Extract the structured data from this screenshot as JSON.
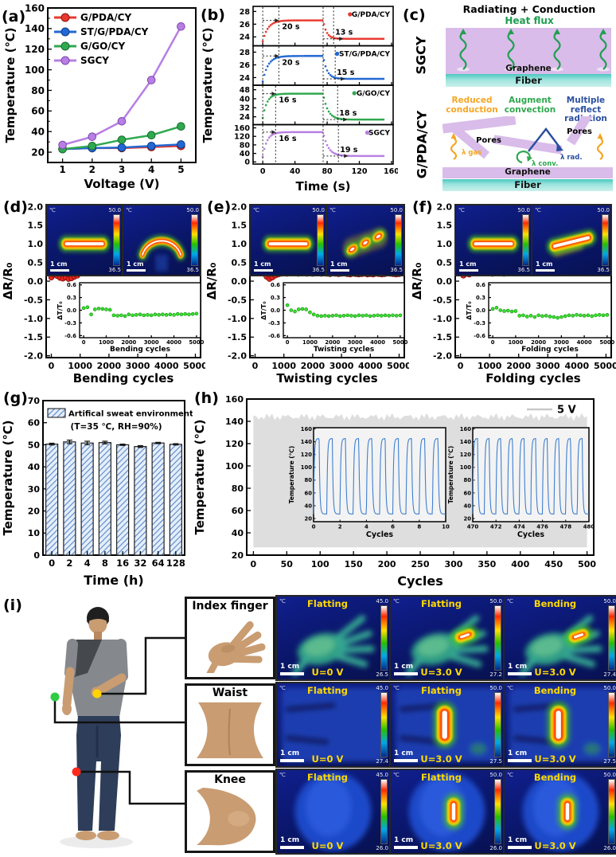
{
  "labels": {
    "a": "(a)",
    "b": "(b)",
    "c": "(c)",
    "d": "(d)",
    "e": "(e)",
    "f": "(f)",
    "g": "(g)",
    "h": "(h)",
    "i": "(i)"
  },
  "colors": {
    "red": "#e8392f",
    "blue": "#2268d2",
    "green": "#2fa84f",
    "purple": "#b77fe3",
    "band_gray": "#dedede",
    "cycle_blue": "#3f7fd0",
    "hatch_blue": "#5b87c5",
    "bar_fill": "#e4eefb",
    "slab_purple": "#d9bce9",
    "fiber_teal": "#4cc8c0",
    "hot_yellow": "#ffd900"
  },
  "panel_c": {
    "sgcy": {
      "side": "SGCY",
      "title": "Radiating + Conduction",
      "heat_flux": "Heat flux",
      "graphene": "Graphene",
      "fiber": "Fiber"
    },
    "gpda": {
      "side": "G/PDA/CY",
      "title_reduced": "Reduced conduction",
      "title_augment": "Augment convection",
      "title_multiple": "Multiple reflect radiation",
      "color_reduced": "#f5a623",
      "color_augment": "#2fa84f",
      "color_multiple": "#2b4fa0",
      "pores1": "Pores",
      "pores2": "Pores",
      "lambda_gas": "λ gas",
      "lambda_conv": "λ conv.",
      "lambda_rad": "λ rad.",
      "graphene": "Graphene",
      "fiber": "Fiber"
    }
  },
  "panel_i": {
    "photos": [
      {
        "label": "Index finger"
      },
      {
        "label": "Waist"
      },
      {
        "label": "Knee"
      }
    ],
    "markers": [
      {
        "part": "index-finger",
        "color": "#ffd400"
      },
      {
        "part": "waist",
        "color": "#2ecc40"
      },
      {
        "part": "knee",
        "color": "#ff2a1a"
      }
    ],
    "rows": [
      {
        "part": "Index finger",
        "art": "hand",
        "cells": [
          {
            "state": "Flatting",
            "voltage": "U=0 V",
            "unit": "℃",
            "cb_max": "45.0",
            "cb_min": "26.5",
            "scale": "1 cm",
            "hot": false
          },
          {
            "state": "Flatting",
            "voltage": "U=3.0 V",
            "unit": "℃",
            "cb_max": "50.0",
            "cb_min": "27.2",
            "scale": "1 cm",
            "hot": true
          },
          {
            "state": "Bending",
            "voltage": "U=3.0 V",
            "unit": "℃",
            "cb_max": "50.0",
            "cb_min": "27.4",
            "scale": "1 cm",
            "hot": true
          }
        ]
      },
      {
        "part": "Waist",
        "art": "waist",
        "cells": [
          {
            "state": "Flatting",
            "voltage": "U=0 V",
            "unit": "℃",
            "cb_max": "45.0",
            "cb_min": "27.4",
            "scale": "1 cm",
            "hot": false
          },
          {
            "state": "Flatting",
            "voltage": "U=3.0 V",
            "unit": "℃",
            "cb_max": "50.0",
            "cb_min": "27.5",
            "scale": "1 cm",
            "hot": true
          },
          {
            "state": "Bending",
            "voltage": "U=3.0 V",
            "unit": "℃",
            "cb_max": "50.0",
            "cb_min": "27.5",
            "scale": "1 cm",
            "hot": true
          }
        ]
      },
      {
        "part": "Knee",
        "art": "knee",
        "cells": [
          {
            "state": "Flatting",
            "voltage": "U=0 V",
            "unit": "℃",
            "cb_max": "45.0",
            "cb_min": "26.0",
            "scale": "1 cm",
            "hot": false
          },
          {
            "state": "Flatting",
            "voltage": "U=3.0 V",
            "unit": "℃",
            "cb_max": "50.0",
            "cb_min": "26.0",
            "scale": "1 cm",
            "hot": true
          },
          {
            "state": "Bending",
            "voltage": "U=3.0 V",
            "unit": "℃",
            "cb_max": "50.0",
            "cb_min": "26.0",
            "scale": "1 cm",
            "hot": true
          }
        ]
      }
    ]
  },
  "chart_data": [
    {
      "panel": "a",
      "type": "line",
      "xlabel": "Voltage (V)",
      "ylabel": "Temperature (℃)",
      "x": [
        1,
        2,
        3,
        4,
        5
      ],
      "xlim": [
        0.5,
        5.5
      ],
      "ylim": [
        10,
        160
      ],
      "yticks": [
        20,
        40,
        60,
        80,
        100,
        120,
        140,
        160
      ],
      "legend_position": "top-left",
      "series": [
        {
          "name": "G/PDA/CY",
          "color": "#e8392f",
          "edge": "#8f130d",
          "values": [
            23,
            24,
            24,
            25,
            26
          ]
        },
        {
          "name": "ST/G/PDA/CY",
          "color": "#2268d2",
          "edge": "#0d3d8f",
          "values": [
            23,
            24,
            24.5,
            26,
            27.5
          ]
        },
        {
          "name": "G/GO/CY",
          "color": "#2fa84f",
          "edge": "#176b2e",
          "values": [
            23,
            26,
            32,
            36.5,
            45
          ]
        },
        {
          "name": "SGCY",
          "color": "#b77fe3",
          "edge": "#7e46b0",
          "values": [
            27,
            35,
            50,
            90,
            142
          ]
        }
      ]
    },
    {
      "panel": "b",
      "type": "line-stack",
      "xlabel": "Time (s)",
      "ylabel": "Temperature (℃)",
      "xlim": [
        -12,
        162
      ],
      "xticks": [
        0,
        40,
        80,
        120,
        160
      ],
      "off_t": 75,
      "subplots": [
        {
          "name": "G/PDA/CY",
          "color": "#e8392f",
          "base": 23.3,
          "peak": 26.6,
          "end": 23.7,
          "rise_t": 20,
          "fall_t": 13,
          "rise_label": "20 s",
          "fall_label": "13 s",
          "yticks": [
            24,
            26,
            28
          ],
          "ylim": [
            22.6,
            28.8
          ]
        },
        {
          "name": "ST/G/PDA/CY",
          "color": "#2268d2",
          "base": 23.4,
          "peak": 27.4,
          "end": 23.8,
          "rise_t": 20,
          "fall_t": 15,
          "rise_label": "20 s",
          "fall_label": "15 s",
          "yticks": [
            24,
            26,
            28
          ],
          "ylim": [
            22.8,
            29
          ]
        },
        {
          "name": "G/GO/CY",
          "color": "#2fa84f",
          "base": 23,
          "peak": 44.5,
          "end": 21.5,
          "rise_t": 16,
          "fall_t": 18,
          "rise_label": "16 s",
          "fall_label": "18 s",
          "yticks": [
            24,
            32,
            40,
            48
          ],
          "ylim": [
            17,
            52
          ]
        },
        {
          "name": "SGCY",
          "color": "#b77fe3",
          "base": 25,
          "peak": 140,
          "end": 28,
          "rise_t": 16,
          "fall_t": 19,
          "rise_label": "16 s",
          "fall_label": "19 s",
          "yticks": [
            0,
            40,
            80,
            120,
            160
          ],
          "ylim": [
            -10,
            175
          ]
        }
      ]
    },
    {
      "panel": "d",
      "type": "scatter",
      "xlabel": "Bending cycles",
      "ylabel": "ΔR/R₀",
      "xlim": [
        -180,
        5180
      ],
      "xticks": [
        0,
        1000,
        2000,
        3000,
        4000,
        5000
      ],
      "ylim": [
        -2.05,
        2.05
      ],
      "yticks": [
        -2,
        -1.5,
        -1,
        -0.5,
        0,
        0.5,
        1,
        1.5,
        2
      ],
      "red": {
        "color": "#e8251f",
        "edge": "#7d0a06",
        "x_step": 100,
        "values": [
          0.1,
          0.17,
          0.14,
          0.09,
          0.07,
          0.1,
          0.06,
          0.08,
          0.12,
          0.15,
          0.22,
          0.27,
          0.3,
          0.29,
          0.31,
          0.3,
          0.29,
          0.31,
          0.3,
          0.3,
          0.29,
          0.3,
          0.31,
          0.29,
          0.3,
          0.29,
          0.28,
          0.29,
          0.3,
          0.28,
          0.27,
          0.28,
          0.29,
          0.27,
          0.26,
          0.28,
          0.27,
          0.26,
          0.27,
          0.26,
          0.25,
          0.27,
          0.26,
          0.25,
          0.26,
          0.25,
          0.24,
          0.26,
          0.25,
          0.24,
          0.25
        ]
      },
      "inset": {
        "xlabel": "Bending cycles",
        "ylabel": "ΔT/T₀",
        "ylim": [
          -0.65,
          0.65
        ],
        "yticks": [
          -0.6,
          -0.3,
          0,
          0.3,
          0.6
        ],
        "xticks": [
          0,
          1000,
          2000,
          3000,
          4000,
          5000
        ],
        "green": {
          "color": "#39e02e",
          "edge": "#0e8a0a",
          "x_step": 166.7,
          "values": [
            0.05,
            0.07,
            -0.1,
            0.02,
            0.04,
            0.03,
            0.02,
            0.01,
            -0.12,
            -0.13,
            -0.12,
            -0.14,
            -0.1,
            -0.12,
            -0.11,
            -0.1,
            -0.12,
            -0.11,
            -0.12,
            -0.1,
            -0.11,
            -0.1,
            -0.11,
            -0.1,
            -0.11,
            -0.09,
            -0.1,
            -0.09,
            -0.1,
            -0.09,
            -0.08
          ]
        }
      },
      "thermal": [
        {
          "unit": "℃",
          "cb_max": "50.0",
          "cb_min": "36.5",
          "scale": "1 cm",
          "art": "strip"
        },
        {
          "unit": "℃",
          "cb_max": "50.0",
          "cb_min": "36.5",
          "scale": "1 cm",
          "art": "arc"
        }
      ]
    },
    {
      "panel": "e",
      "type": "scatter",
      "xlabel": "Twisting cycles",
      "ylabel": "ΔR/R₀",
      "xlim": [
        -180,
        5180
      ],
      "xticks": [
        0,
        1000,
        2000,
        3000,
        4000,
        5000
      ],
      "ylim": [
        -2.05,
        2.05
      ],
      "yticks": [
        -2,
        -1.5,
        -1,
        -0.5,
        0,
        0.5,
        1,
        1.5,
        2
      ],
      "red": {
        "color": "#e8251f",
        "edge": "#7d0a06",
        "x_step": 100,
        "values": [
          0.5,
          0.43,
          0.38,
          0.2,
          0.12,
          0.06,
          0.1,
          0.15,
          0.18,
          0.2,
          0.22,
          0.2,
          0.23,
          0.21,
          0.22,
          0.2,
          0.21,
          0.22,
          0.2,
          0.21,
          0.2,
          0.22,
          0.21,
          0.2,
          0.21,
          0.2,
          0.19,
          0.21,
          0.2,
          0.19,
          0.2,
          0.21,
          0.19,
          0.18,
          0.2,
          0.19,
          0.18,
          0.19,
          0.2,
          0.18,
          0.19,
          0.18,
          0.2,
          0.19,
          0.18,
          0.19,
          0.23,
          0.2,
          0.19,
          0.18,
          0.19
        ]
      },
      "inset": {
        "xlabel": "Twisting cycles",
        "ylabel": "ΔT/T₀",
        "ylim": [
          -0.65,
          0.65
        ],
        "yticks": [
          -0.6,
          -0.3,
          0,
          0.3,
          0.6
        ],
        "xticks": [
          0,
          1000,
          2000,
          3000,
          4000,
          5000
        ],
        "green": {
          "color": "#39e02e",
          "edge": "#0e8a0a",
          "x_step": 166.7,
          "values": [
            0.12,
            0.0,
            -0.03,
            0.02,
            0.03,
            0.02,
            -0.05,
            -0.1,
            -0.13,
            -0.14,
            -0.13,
            -0.14,
            -0.13,
            -0.12,
            -0.14,
            -0.13,
            -0.12,
            -0.13,
            -0.14,
            -0.12,
            -0.13,
            -0.12,
            -0.14,
            -0.13,
            -0.12,
            -0.13,
            -0.12,
            -0.13,
            -0.12,
            -0.13,
            -0.12
          ]
        }
      },
      "thermal": [
        {
          "unit": "℃",
          "cb_max": "50.0",
          "cb_min": "36.5",
          "scale": "1 cm",
          "art": "strip"
        },
        {
          "unit": "℃",
          "cb_max": "50.0",
          "cb_min": "36.5",
          "scale": "1 cm",
          "art": "twist"
        }
      ]
    },
    {
      "panel": "f",
      "type": "scatter",
      "xlabel": "Folding cycles",
      "ylabel": "ΔR/R₀",
      "xlim": [
        -180,
        5180
      ],
      "xticks": [
        0,
        1000,
        2000,
        3000,
        4000,
        5000
      ],
      "ylim": [
        -2.05,
        2.05
      ],
      "yticks": [
        -2,
        -1.5,
        -1,
        -0.5,
        0,
        0.5,
        1,
        1.5,
        2
      ],
      "red": {
        "color": "#e8251f",
        "edge": "#7d0a06",
        "x_step": 100,
        "values": [
          0.38,
          0.15,
          0.2,
          0.18,
          0.22,
          0.25,
          0.28,
          0.3,
          0.25,
          0.33,
          0.42,
          0.2,
          0.22,
          0.25,
          0.23,
          0.2,
          0.26,
          0.28,
          0.25,
          0.22,
          0.26,
          0.3,
          0.28,
          0.25,
          0.27,
          0.24,
          0.26,
          0.28,
          0.25,
          0.27,
          0.26,
          0.24,
          0.28,
          0.27,
          0.25,
          0.3,
          0.36,
          0.38,
          0.35,
          0.37,
          0.36,
          0.34,
          0.36,
          0.35,
          0.37,
          0.36,
          0.35,
          0.36,
          0.34,
          0.35,
          0.36
        ]
      },
      "inset": {
        "xlabel": "Folding cycles",
        "ylabel": "ΔT/T₀",
        "ylim": [
          -0.65,
          0.65
        ],
        "yticks": [
          -0.6,
          -0.3,
          0,
          0.3,
          0.6
        ],
        "xticks": [
          0,
          1000,
          2000,
          3000,
          4000,
          5000
        ],
        "green": {
          "color": "#39e02e",
          "edge": "#0e8a0a",
          "x_step": 166.7,
          "values": [
            0.03,
            0.06,
            0.0,
            -0.02,
            -0.01,
            -0.03,
            -0.02,
            -0.13,
            -0.12,
            -0.15,
            -0.13,
            -0.16,
            -0.12,
            -0.14,
            -0.13,
            -0.15,
            -0.16,
            -0.18,
            -0.16,
            -0.14,
            -0.12,
            -0.13,
            -0.11,
            -0.12,
            -0.13,
            -0.12,
            -0.14,
            -0.12,
            -0.11,
            -0.12,
            -0.11
          ]
        }
      },
      "thermal": [
        {
          "unit": "℃",
          "cb_max": "50.0",
          "cb_min": "36.5",
          "scale": "1 cm",
          "art": "strip"
        },
        {
          "unit": "℃",
          "cb_max": "50.0",
          "cb_min": "36.5",
          "scale": "1 cm",
          "art": "fold"
        }
      ]
    },
    {
      "panel": "g",
      "type": "bar",
      "categories": [
        "0",
        "2",
        "4",
        "8",
        "16",
        "32",
        "64",
        "128"
      ],
      "values": [
        50.3,
        51.3,
        50.8,
        51.0,
        50.0,
        49.2,
        50.8,
        50.2
      ],
      "errors": [
        0.4,
        0.8,
        0.8,
        0.6,
        0.3,
        0.4,
        0.3,
        0.3
      ],
      "legend": [
        "Artifical sweat environment",
        "(T=35 ℃, RH=90%)"
      ],
      "xlabel": "Time (h)",
      "ylabel": "Temperature (℃)",
      "ylim": [
        0,
        70
      ],
      "yticks": [
        0,
        10,
        20,
        30,
        40,
        50,
        60,
        70
      ],
      "bar_fill": "#e4eefb",
      "hatch_color": "#5b87c5"
    },
    {
      "panel": "h",
      "type": "cycles",
      "xlabel": "Cycles",
      "ylabel": "Temperature (℃)",
      "xlim": [
        -10,
        510
      ],
      "xticks": [
        0,
        50,
        100,
        150,
        200,
        250,
        300,
        350,
        400,
        450,
        500
      ],
      "ylim": [
        20,
        160
      ],
      "yticks": [
        20,
        40,
        60,
        80,
        100,
        120,
        140,
        160
      ],
      "legend": "5 V",
      "legend_color": "#c9c9c9",
      "curve_color": "#3f7fd0",
      "band": {
        "color": "#dedede",
        "min": 27,
        "max": 144
      },
      "insets": [
        {
          "xlabel": "Cycles",
          "ylabel": "Temperature (℃)",
          "x_start": 0,
          "x_end": 10,
          "xticks": [
            0,
            2,
            4,
            6,
            8,
            10
          ],
          "yticks": [
            20,
            40,
            60,
            80,
            100,
            120,
            140,
            160
          ],
          "ylim": [
            15,
            162
          ],
          "cycle_min": 27,
          "cycle_max": 145
        },
        {
          "xlabel": "Cycles",
          "ylabel": "Temperature (℃)",
          "x_start": 470,
          "x_end": 480,
          "xticks": [
            470,
            472,
            474,
            476,
            478,
            480
          ],
          "yticks": [
            20,
            40,
            60,
            80,
            100,
            120,
            140,
            160
          ],
          "ylim": [
            15,
            162
          ],
          "cycle_min": 27,
          "cycle_max": 145
        }
      ]
    }
  ]
}
